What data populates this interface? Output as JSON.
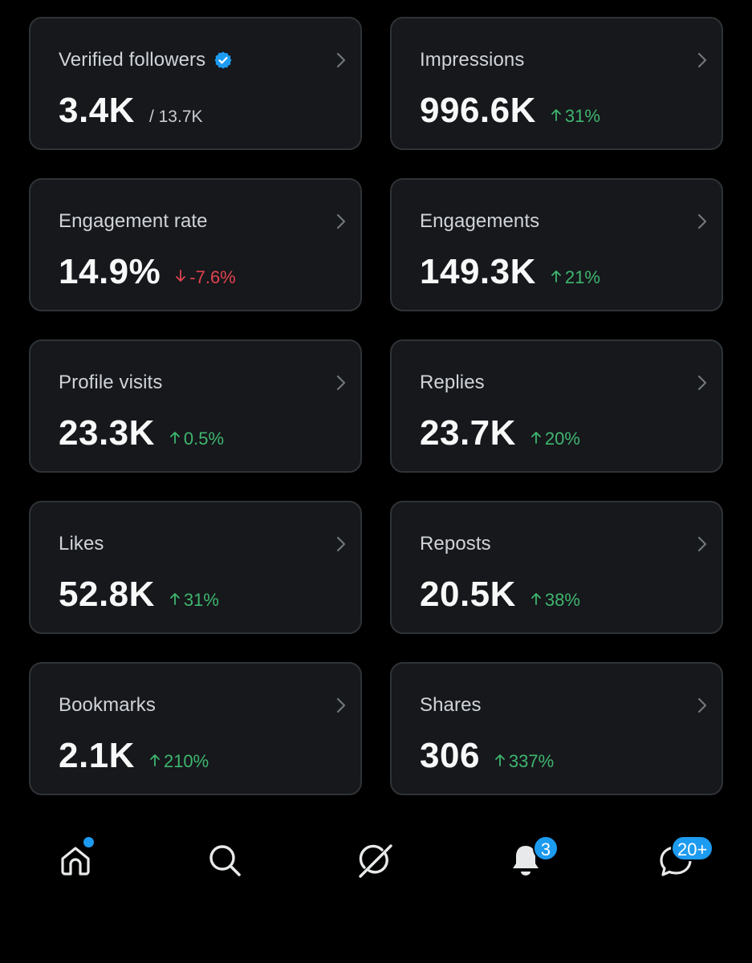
{
  "colors": {
    "background": "#000000",
    "card_background": "#16181c",
    "card_border": "#2f3336",
    "positive": "#3fb66e",
    "negative": "#e0434e",
    "accent": "#1d9bf0"
  },
  "cards": [
    {
      "label": "Verified followers",
      "value": "3.4K",
      "sub": "/ 13.7K",
      "verified_icon": "verified-badge-icon",
      "chevron_icon": "chevron-right-icon"
    },
    {
      "label": "Impressions",
      "value": "996.6K",
      "delta": "31%",
      "direction": "up",
      "chevron_icon": "chevron-right-icon"
    },
    {
      "label": "Engagement rate",
      "value": "14.9%",
      "delta": "-7.6%",
      "direction": "down",
      "chevron_icon": "chevron-right-icon"
    },
    {
      "label": "Engagements",
      "value": "149.3K",
      "delta": "21%",
      "direction": "up",
      "chevron_icon": "chevron-right-icon"
    },
    {
      "label": "Profile visits",
      "value": "23.3K",
      "delta": "0.5%",
      "direction": "up",
      "chevron_icon": "chevron-right-icon"
    },
    {
      "label": "Replies",
      "value": "23.7K",
      "delta": "20%",
      "direction": "up",
      "chevron_icon": "chevron-right-icon"
    },
    {
      "label": "Likes",
      "value": "52.8K",
      "delta": "31%",
      "direction": "up",
      "chevron_icon": "chevron-right-icon"
    },
    {
      "label": "Reposts",
      "value": "20.5K",
      "delta": "38%",
      "direction": "up",
      "chevron_icon": "chevron-right-icon"
    },
    {
      "label": "Bookmarks",
      "value": "2.1K",
      "delta": "210%",
      "direction": "up",
      "chevron_icon": "chevron-right-icon"
    },
    {
      "label": "Shares",
      "value": "306",
      "delta": "337%",
      "direction": "up",
      "chevron_icon": "chevron-right-icon"
    }
  ],
  "nav": {
    "items": [
      {
        "icon": "home-icon",
        "has_dot": true
      },
      {
        "icon": "search-icon"
      },
      {
        "icon": "grok-icon"
      },
      {
        "icon": "notifications-bell-icon",
        "badge": "3"
      },
      {
        "icon": "messages-icon",
        "badge": "20+"
      }
    ]
  }
}
